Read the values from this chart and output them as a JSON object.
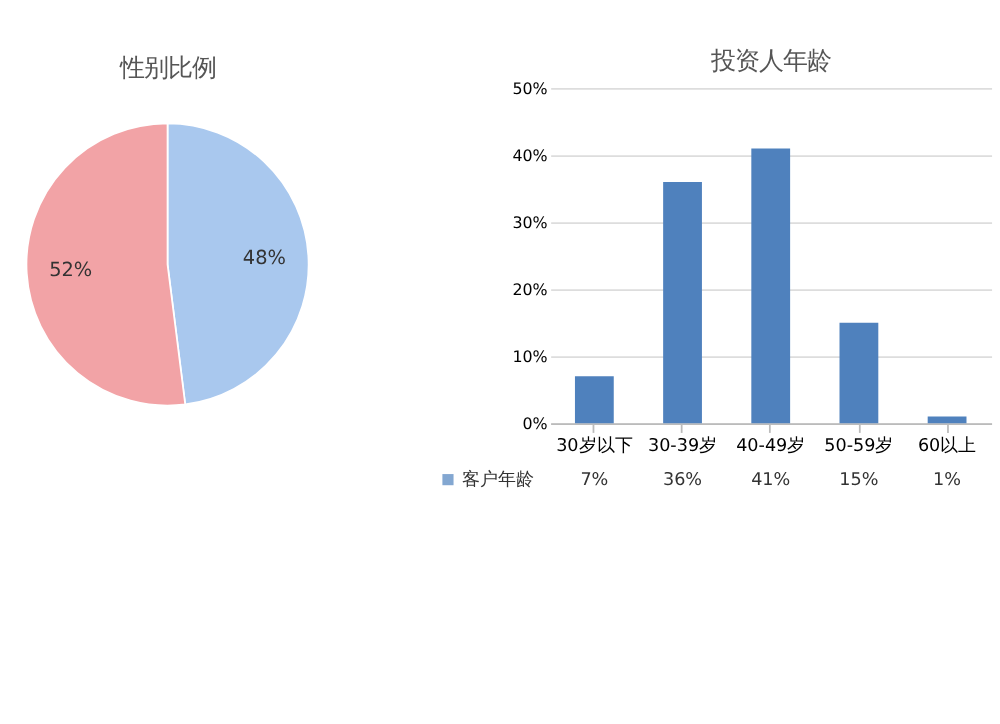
{
  "chart_data": [
    {
      "type": "pie",
      "title": "性别比例",
      "categories": [
        null,
        null
      ],
      "values": [
        48,
        52
      ],
      "colors": [
        "#a9c8ee",
        "#f2a3a6"
      ],
      "value_labels": [
        "48%",
        "52%"
      ]
    },
    {
      "type": "bar",
      "title": "投资人年龄",
      "categories": [
        "30岁以下",
        "30-39岁",
        "40-49岁",
        "50-59岁",
        "60以上"
      ],
      "series": [
        {
          "name": "客户年龄",
          "color": "#4f81bd",
          "values": [
            7,
            36,
            41,
            15,
            1
          ],
          "value_labels": [
            "7%",
            "36%",
            "41%",
            "15%",
            "1%"
          ]
        }
      ],
      "ylim": [
        0,
        50
      ],
      "yticks": [
        {
          "value": 0,
          "label": "0%"
        },
        {
          "value": 10,
          "label": "10%"
        },
        {
          "value": 20,
          "label": "20%"
        },
        {
          "value": 30,
          "label": "30%"
        },
        {
          "value": 40,
          "label": "40%"
        },
        {
          "value": 50,
          "label": "50%"
        }
      ],
      "grid": "y",
      "legend": "bottom left"
    }
  ]
}
